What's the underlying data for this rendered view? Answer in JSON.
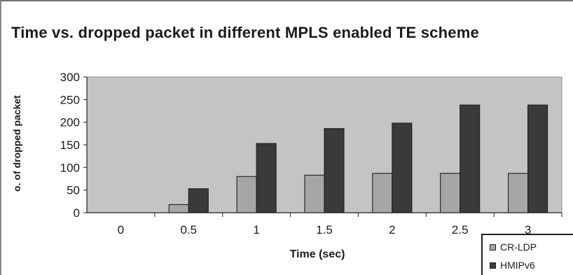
{
  "chart_data": {
    "type": "bar",
    "title": "Time vs. dropped packet in different MPLS enabled TE scheme",
    "xlabel": "Time (sec)",
    "ylabel": "o. of dropped packet",
    "categories": [
      "0",
      "0.5",
      "1",
      "1.5",
      "2",
      "2.5",
      "3"
    ],
    "series": [
      {
        "name": "CR-LDP",
        "values": [
          0,
          18,
          80,
          83,
          87,
          87,
          87
        ],
        "color": "#a6a6a6"
      },
      {
        "name": "HMIPv6",
        "values": [
          0,
          53,
          153,
          186,
          198,
          238,
          238
        ],
        "color": "#3a3a3a"
      }
    ],
    "ylim": [
      0,
      300
    ],
    "yticks": [
      "0",
      "50",
      "100",
      "150",
      "200",
      "250",
      "300"
    ],
    "grid": false,
    "legend_position": "bottom-right",
    "plot_background": "#c4c4c4"
  }
}
